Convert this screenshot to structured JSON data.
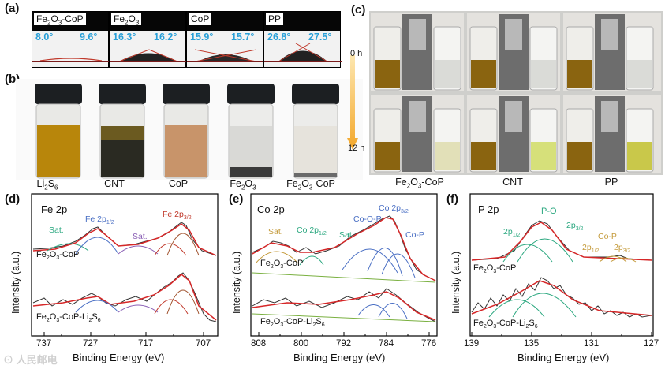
{
  "panel_a": {
    "label": "(a)",
    "items": [
      {
        "name_html": [
          "Fe",
          "2",
          "O",
          "3",
          "-CoP"
        ],
        "left": "8.0°",
        "right": "9.6°"
      },
      {
        "name_html": [
          "Fe",
          "2",
          "O",
          "3",
          "",
          "",
          ""
        ],
        "left": "16.3°",
        "right": "16.2°"
      },
      {
        "name_html": [
          "CoP",
          "",
          "",
          "",
          "",
          "",
          ""
        ],
        "left": "15.9°",
        "right": "15.7°"
      },
      {
        "name_html": [
          "PP",
          "",
          "",
          "",
          "",
          "",
          ""
        ],
        "left": "26.8°",
        "right": "27.5°"
      }
    ]
  },
  "panel_b": {
    "label": "(b)",
    "vials": [
      {
        "main": "Li",
        "sub1": "2",
        "mid": "S",
        "sub2": "6",
        "tail": "",
        "color": "#b8860b"
      },
      {
        "main": "CNT",
        "sub1": "",
        "mid": "",
        "sub2": "",
        "tail": "",
        "color": "#2a2a22"
      },
      {
        "main": "CoP",
        "sub1": "",
        "mid": "",
        "sub2": "",
        "tail": "",
        "color": "#c8946a"
      },
      {
        "main": "Fe",
        "sub1": "2",
        "mid": "O",
        "sub2": "3",
        "tail": "",
        "color": "#d9d9d6"
      },
      {
        "main": "Fe",
        "sub1": "2",
        "mid": "O",
        "sub2": "3",
        "tail": "-CoP",
        "color": "#e6e3dc"
      }
    ]
  },
  "panel_c": {
    "label": "(c)",
    "time_top": "0 h",
    "time_bottom": "12 h",
    "samples": [
      {
        "main": "Fe",
        "sub1": "2",
        "mid": "O",
        "sub2": "3",
        "tail": "-CoP"
      },
      {
        "main": "CNT",
        "sub1": "",
        "mid": "",
        "sub2": "",
        "tail": ""
      },
      {
        "main": "PP",
        "sub1": "",
        "mid": "",
        "sub2": "",
        "tail": ""
      }
    ]
  },
  "panel_d": {
    "label": "(d)",
    "title": "Fe 2p",
    "xlabel": "Binding Energy (eV)",
    "ylabel": "Intensity (a.u.)",
    "xticks": [
      "737",
      "727",
      "717",
      "707"
    ],
    "peaks": {
      "sat1": "Sat.",
      "fe12": "Fe 2p",
      "fe12sub": "1/2",
      "sat2": "Sat.",
      "fe32": "Fe 2p",
      "fe32sub": "3/2"
    },
    "sample_top": {
      "a": "Fe",
      "b": "2",
      "c": "O",
      "d": "3",
      "e": "-CoP"
    },
    "sample_bottom": {
      "a": "Fe",
      "b": "2",
      "c": "O",
      "d": "3",
      "e": "-CoP-Li",
      "f": "2",
      "g": "S",
      "h": "6"
    }
  },
  "panel_e": {
    "label": "(e)",
    "title": "Co 2p",
    "xlabel": "Binding Energy (eV)",
    "ylabel": "Intensity (a.u.)",
    "xticks": [
      "808",
      "800",
      "792",
      "784",
      "776"
    ],
    "peaks": {
      "sat1": "Sat.",
      "co12": "Co 2p",
      "co12sub": "1/2",
      "sat2": "Sat.",
      "coop": "Co-O-P",
      "co32": "Co 2p",
      "co32sub": "3/2",
      "cop": "Co-P"
    },
    "sample_top": {
      "a": "Fe",
      "b": "2",
      "c": "O",
      "d": "3",
      "e": "-CoP"
    },
    "sample_bottom": {
      "a": "Fe",
      "b": "2",
      "c": "O",
      "d": "3",
      "e": "-CoP-Li",
      "f": "2",
      "g": "S",
      "h": "6"
    }
  },
  "panel_f": {
    "label": "(f)",
    "title": "P 2p",
    "xlabel": "Binding Energy (eV)",
    "ylabel": "Intensity (a.u.)",
    "xticks": [
      "139",
      "135",
      "131",
      "127"
    ],
    "peaks": {
      "po": "P-O",
      "p12": "2p",
      "p12sub": "1/2",
      "p32": "2p",
      "p32sub": "3/2",
      "cop": "Co-P",
      "cp12": "2p",
      "cp12sub": "1/2",
      "cp32": "2p",
      "cp32sub": "3/2"
    },
    "sample_top": {
      "a": "Fe",
      "b": "2",
      "c": "O",
      "d": "3",
      "e": "-CoP"
    },
    "sample_bottom": {
      "a": "Fe",
      "b": "2",
      "c": "O",
      "d": "3",
      "e": "-CoP-Li",
      "f": "2",
      "g": "S",
      "h": "6"
    }
  },
  "watermark": "人民邮电",
  "colors": {
    "envelope": "#d62728",
    "green": "#2ca880",
    "blue": "#4a6fc4",
    "purple": "#8a5fb5",
    "brown": "#c49a3a",
    "data": "#333333",
    "cyan": "#2aa0d8"
  }
}
